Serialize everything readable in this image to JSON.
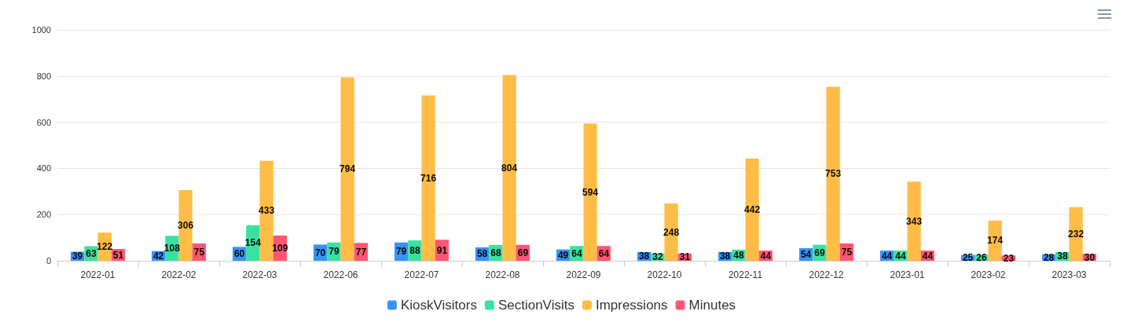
{
  "chart_data": {
    "type": "bar",
    "categories": [
      "2022-01",
      "2022-02",
      "2022-03",
      "2022-06",
      "2022-07",
      "2022-08",
      "2022-09",
      "2022-10",
      "2022-11",
      "2022-12",
      "2023-01",
      "2023-02",
      "2023-03"
    ],
    "series": [
      {
        "name": "KioskVisitors",
        "color": "#2b8ef8",
        "values": [
          39,
          42,
          60,
          70,
          79,
          58,
          49,
          38,
          38,
          54,
          44,
          25,
          28
        ]
      },
      {
        "name": "SectionVisits",
        "color": "#2ee09a",
        "values": [
          63,
          108,
          154,
          79,
          88,
          68,
          64,
          32,
          48,
          69,
          44,
          26,
          38
        ]
      },
      {
        "name": "Impressions",
        "color": "#ffb83d",
        "values": [
          122,
          306,
          433,
          794,
          716,
          804,
          594,
          248,
          442,
          753,
          343,
          174,
          232
        ]
      },
      {
        "name": "Minutes",
        "color": "#ff4d6a",
        "values": [
          51,
          75,
          109,
          77,
          91,
          69,
          64,
          31,
          44,
          75,
          44,
          23,
          30
        ]
      }
    ],
    "ylim": [
      0,
      1000
    ],
    "yticks": [
      0,
      200,
      400,
      600,
      800,
      1000
    ],
    "grid": "y",
    "legend": "bottom",
    "data_labels": true
  }
}
